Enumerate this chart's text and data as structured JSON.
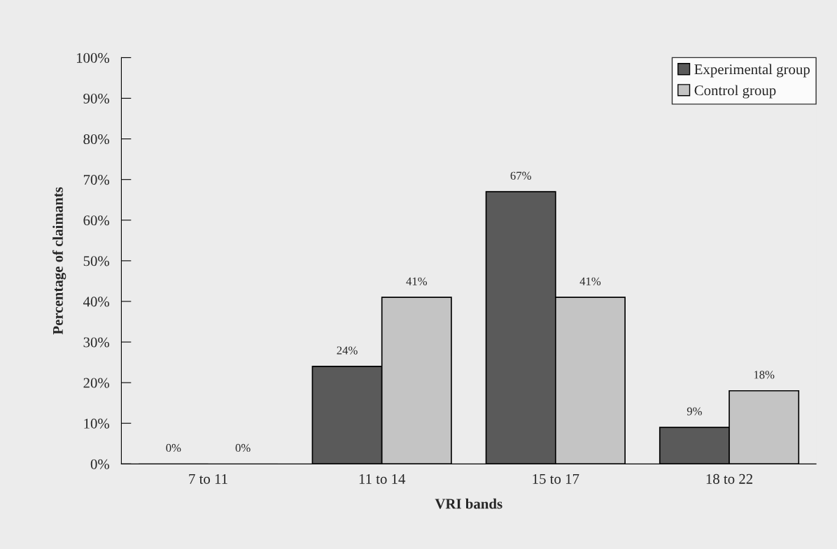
{
  "chart_data": {
    "type": "bar",
    "xlabel": "VRI bands",
    "ylabel": "Percentage of claimants",
    "categories": [
      "7 to 11",
      "11 to 14",
      "15 to 17",
      "18 to 22"
    ],
    "series": [
      {
        "name": "Experimental group",
        "color": "#5a5a5a",
        "values": [
          0,
          24,
          67,
          9
        ],
        "value_labels": [
          "0%",
          "24%",
          "67%",
          "9%"
        ]
      },
      {
        "name": "Control group",
        "color": "#c4c4c4",
        "values": [
          0,
          41,
          41,
          18
        ],
        "value_labels": [
          "0%",
          "41%",
          "41%",
          "18%"
        ]
      }
    ],
    "ylim": [
      0,
      100
    ],
    "yticks": [
      {
        "value": 0,
        "label": "0%"
      },
      {
        "value": 10,
        "label": "10%"
      },
      {
        "value": 20,
        "label": "20%"
      },
      {
        "value": 30,
        "label": "30%"
      },
      {
        "value": 40,
        "label": "40%"
      },
      {
        "value": 50,
        "label": "50%"
      },
      {
        "value": 60,
        "label": "60%"
      },
      {
        "value": 70,
        "label": "70%"
      },
      {
        "value": 80,
        "label": "80%"
      },
      {
        "value": 90,
        "label": "90%"
      },
      {
        "value": 100,
        "label": "100%"
      }
    ],
    "grid": false,
    "legend": "top right"
  }
}
